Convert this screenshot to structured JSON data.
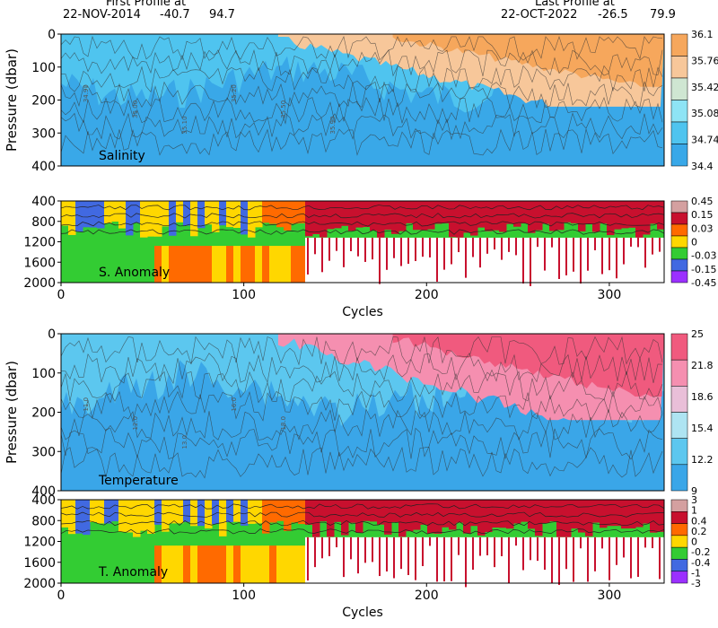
{
  "header": {
    "first_label": "First Profile at",
    "first_date": "22-NOV-2014",
    "first_lat": "-40.7",
    "first_lon": "94.7",
    "last_label": "Last Profile at",
    "last_date": "22-OCT-2022",
    "last_lat": "-26.5",
    "last_lon": "79.9"
  },
  "chart_data": [
    {
      "type": "heatmap",
      "title": "Salinity",
      "ylabel": "Pressure (dbar)",
      "xlim": [
        0,
        330
      ],
      "ylim": [
        400,
        0
      ],
      "yticks": [
        0,
        100,
        200,
        300,
        400
      ],
      "colorbar_ticks": [
        "36.1",
        "35.76",
        "35.42",
        "35.08",
        "34.74",
        "34.4"
      ],
      "colors": [
        "#f6a75c",
        "#f7c79a",
        "#cfe6d2",
        "#8ee4f5",
        "#4fc4ef",
        "#39a8e8"
      ],
      "contour_labels": [
        "34.90",
        "35.00",
        "35.10",
        "35.20",
        "35.50",
        "35.90"
      ]
    },
    {
      "type": "heatmap",
      "title": "S. Anomaly",
      "xlabel": "Cycles",
      "xlim": [
        0,
        330
      ],
      "xticks": [
        0,
        100,
        200,
        300
      ],
      "ylim": [
        2000,
        400
      ],
      "yticks": [
        400,
        800,
        1200,
        1600,
        2000
      ],
      "colorbar_ticks": [
        "0.45",
        "0.15",
        "0.03",
        "0",
        "-0.03",
        "-0.15",
        "-0.45"
      ],
      "colors": [
        "#d4a0a0",
        "#c8102e",
        "#ff6a00",
        "#ffd700",
        "#33cc33",
        "#4169e1",
        "#9b30ff"
      ]
    },
    {
      "type": "heatmap",
      "title": "Temperature",
      "ylabel": "Pressure (dbar)",
      "xlim": [
        0,
        330
      ],
      "ylim": [
        400,
        0
      ],
      "yticks": [
        0,
        100,
        200,
        300,
        400
      ],
      "colorbar_ticks": [
        "25",
        "21.8",
        "18.6",
        "15.4",
        "12.2",
        "9"
      ],
      "colors": [
        "#f05a7e",
        "#f58fb0",
        "#e9bfd8",
        "#aee4f2",
        "#5cc7ef",
        "#3aa6e8"
      ],
      "contour_labels": [
        "11.0",
        "12.0",
        "13.0",
        "16.0",
        "18.0"
      ]
    },
    {
      "type": "heatmap",
      "title": "T. Anomaly",
      "xlabel": "Cycles",
      "xlim": [
        0,
        330
      ],
      "xticks": [
        0,
        100,
        200,
        300
      ],
      "ylim": [
        2000,
        400
      ],
      "yticks": [
        400,
        800,
        1200,
        1600,
        2000
      ],
      "colorbar_ticks": [
        "3",
        "1",
        "0.4",
        "0.2",
        "0",
        "-0.2",
        "-0.4",
        "-1",
        "-3"
      ],
      "colors": [
        "#d4a0a0",
        "#c8102e",
        "#ff6a00",
        "#ffd700",
        "#33cc33",
        "#4169e1",
        "#9b30ff"
      ]
    }
  ]
}
